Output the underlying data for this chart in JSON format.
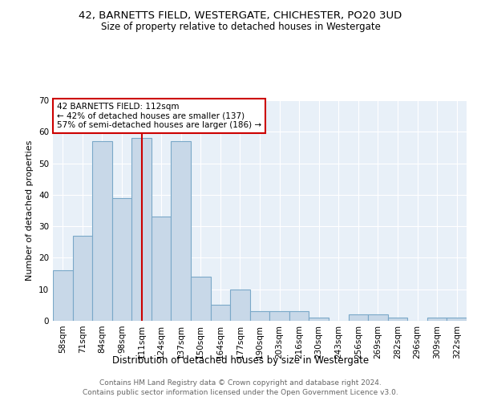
{
  "title1": "42, BARNETTS FIELD, WESTERGATE, CHICHESTER, PO20 3UD",
  "title2": "Size of property relative to detached houses in Westergate",
  "xlabel": "Distribution of detached houses by size in Westergate",
  "ylabel": "Number of detached properties",
  "footnote1": "Contains HM Land Registry data © Crown copyright and database right 2024.",
  "footnote2": "Contains public sector information licensed under the Open Government Licence v3.0.",
  "bar_labels": [
    "58sqm",
    "71sqm",
    "84sqm",
    "98sqm",
    "111sqm",
    "124sqm",
    "137sqm",
    "150sqm",
    "164sqm",
    "177sqm",
    "190sqm",
    "203sqm",
    "216sqm",
    "230sqm",
    "243sqm",
    "256sqm",
    "269sqm",
    "282sqm",
    "296sqm",
    "309sqm",
    "322sqm"
  ],
  "bar_values": [
    16,
    27,
    57,
    39,
    58,
    33,
    57,
    14,
    5,
    10,
    3,
    3,
    3,
    1,
    0,
    2,
    2,
    1,
    0,
    1,
    1
  ],
  "bar_color": "#c8d8e8",
  "bar_edgecolor": "#7aa8c8",
  "vline_x": 4.0,
  "vline_color": "#cc0000",
  "annotation_text": "42 BARNETTS FIELD: 112sqm\n← 42% of detached houses are smaller (137)\n57% of semi-detached houses are larger (186) →",
  "annotation_box_color": "#ffffff",
  "annotation_box_edgecolor": "#cc0000",
  "ylim": [
    0,
    70
  ],
  "yticks": [
    0,
    10,
    20,
    30,
    40,
    50,
    60,
    70
  ],
  "plot_bg_color": "#e8f0f8",
  "title1_fontsize": 9.5,
  "title2_fontsize": 8.5,
  "xlabel_fontsize": 8.5,
  "ylabel_fontsize": 8,
  "tick_fontsize": 7.5,
  "annotation_fontsize": 7.5,
  "footnote_fontsize": 6.5
}
